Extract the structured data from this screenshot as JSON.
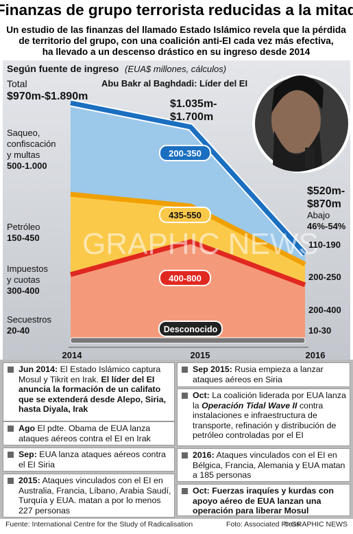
{
  "header": {
    "title": "Finanzas de grupo terrorista reducidas a la mitad",
    "subtitle": [
      "Un estudio de las finanzas del llamado Estado Islámico revela que la pérdida",
      "de territorio del grupo, con una coalición anti-EI cada vez más efectiva,",
      "ha llevado a un descenso drástico en su ingreso desde 2014"
    ]
  },
  "chart": {
    "heading": "Según fuente de ingreso",
    "units": "(EUA$ millones, cálculos)",
    "photo_caption": "Abu Bakr al Baghdadi: Líder del EI",
    "years": [
      "2014",
      "2015",
      "2016"
    ],
    "total_2014": {
      "label": "Total",
      "value": "$970m-$1.890m"
    },
    "total_2015": [
      "$1.035m-",
      "$1.700m"
    ],
    "total_2016": {
      "lines": [
        "$520m-",
        "$870m"
      ],
      "note": [
        "Abajo",
        "46%-54%"
      ]
    },
    "sources": [
      {
        "label": [
          "Saqueo,",
          "confiscación",
          "y multas"
        ],
        "range_2014": "500-1.000",
        "range_2015": "200-350",
        "range_2016": "110-190"
      },
      {
        "label": [
          "Petróleo"
        ],
        "range_2014": "150-450",
        "range_2015": "435-550",
        "range_2016": "200-250"
      },
      {
        "label": [
          "Impuestos",
          "y cuotas"
        ],
        "range_2014": "300-400",
        "range_2015": "400-800",
        "range_2016": "200-400"
      },
      {
        "label": [
          "Secuestros"
        ],
        "range_2014": "20-40",
        "range_2015": "Desconocido",
        "range_2016": "10-30"
      }
    ],
    "watermark": "GRAPHIC NEWS"
  },
  "timeline": {
    "left": [
      [
        {
          "text": "Jun 2014:",
          "style": "bold"
        },
        {
          "text": " El Estado Islámico captura Mosul y Tikrit en Irak. "
        },
        {
          "text": "El líder del EI anuncia la formación de un califato que se extenderá desde Alepo, Siria, hasta Diyala, Irak",
          "style": "bold"
        }
      ],
      [
        {
          "text": "Ago",
          "style": "bold"
        },
        {
          "text": " El pdte. Obama de EUA lanza ataques aéreos contra el EI en Irak"
        }
      ],
      [
        {
          "text": "Sep:",
          "style": "bold"
        },
        {
          "text": " EUA lanza ataques aéreos contra el EI Siria"
        }
      ],
      [
        {
          "text": "2015:",
          "style": "bold"
        },
        {
          "text": " Ataques vinculados con el EI en Australia, Francia, Líbano, Arabia Saudí, Turquía y EUA. matan a por lo menos 227 personas"
        }
      ]
    ],
    "right": [
      [
        {
          "text": "Sep 2015:",
          "style": "bold"
        },
        {
          "text": " Rusia empieza a lanzar ataques aéreos en Siria"
        }
      ],
      [
        {
          "text": "Oct:",
          "style": "bold"
        },
        {
          "text": " La coalición liderada por EUA lanza la "
        },
        {
          "text": "Operación Tidal Wave II",
          "style": "bold-italic"
        },
        {
          "text": " contra instalaciones e infraestructura de transporte, refinación y distribución de petróleo controladas por el EI"
        }
      ],
      [
        {
          "text": "2016:",
          "style": "bold"
        },
        {
          "text": " Ataques vinculados con el EI en Bélgica, Francia, Alemania y EUA matan a 185 personas"
        }
      ],
      [
        {
          "text": "Oct: Fuerzas iraquíes y kurdas con apoyo aéreo de EUA lanzan una operación para liberar Mosul",
          "style": "bold"
        }
      ]
    ]
  },
  "footer": {
    "source": "Fuente: International Centre for the Study of Radicalisation",
    "photo": "Foto: Associated Press",
    "credit": "© GRAPHIC NEWS"
  }
}
